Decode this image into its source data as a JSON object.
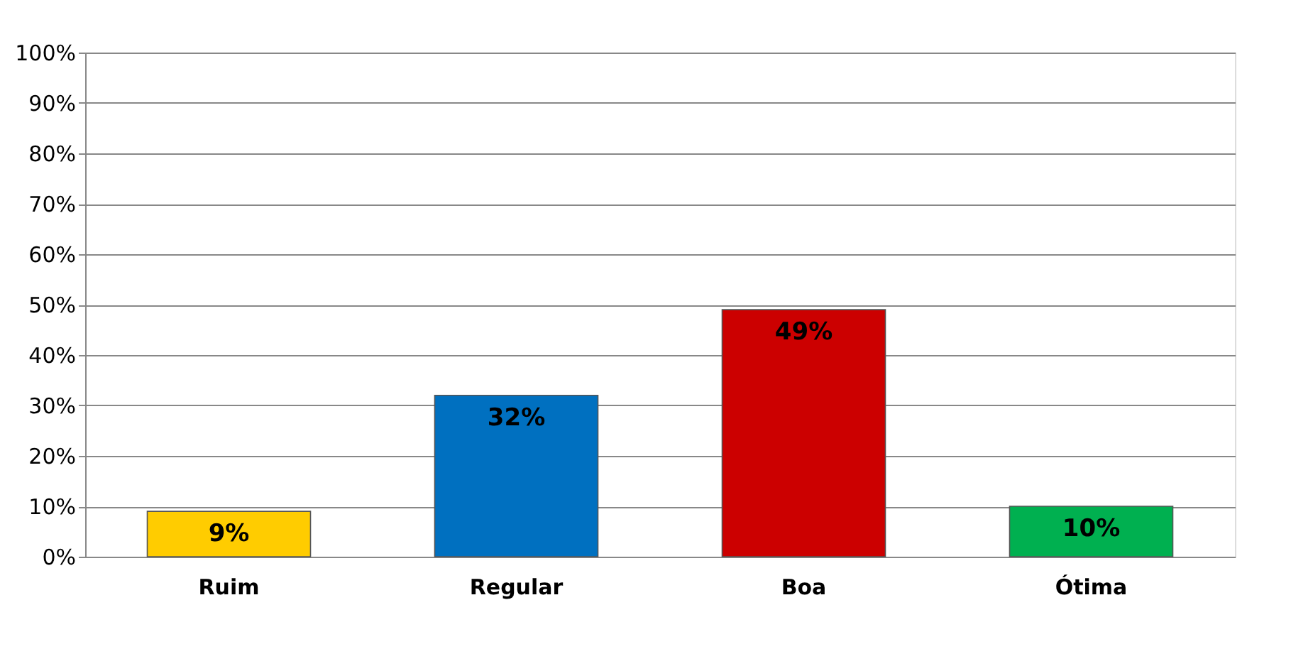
{
  "chart_data": {
    "type": "bar",
    "categories": [
      "Ruim",
      "Regular",
      "Boa",
      "Ótima"
    ],
    "values": [
      9,
      32,
      49,
      10
    ],
    "colors": [
      "#ffcc00",
      "#0070c0",
      "#cc0000",
      "#00b050"
    ],
    "value_labels": [
      "9%",
      "32%",
      "49%",
      "10%"
    ],
    "ylim": [
      0,
      100
    ],
    "yticks": [
      {
        "value": 0,
        "label": "0%"
      },
      {
        "value": 10,
        "label": "10%"
      },
      {
        "value": 20,
        "label": "20%"
      },
      {
        "value": 30,
        "label": "30%"
      },
      {
        "value": 40,
        "label": "40%"
      },
      {
        "value": 50,
        "label": "50%"
      },
      {
        "value": 60,
        "label": "60%"
      },
      {
        "value": 70,
        "label": "70%"
      },
      {
        "value": 80,
        "label": "80%"
      },
      {
        "value": 90,
        "label": "90%"
      },
      {
        "value": 100,
        "label": "100%"
      }
    ],
    "grid": "y",
    "legend": false
  }
}
